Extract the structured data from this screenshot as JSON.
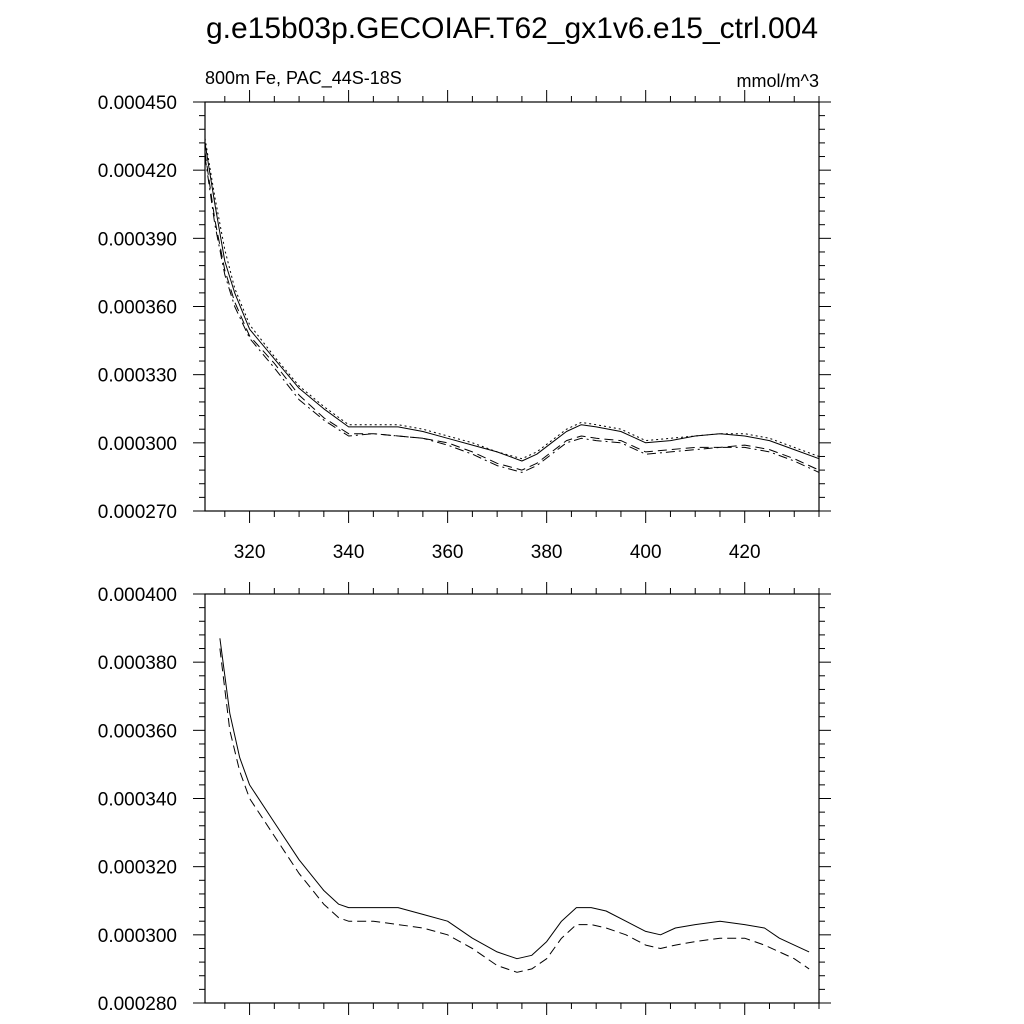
{
  "figure": {
    "title": "g.e15b03p.GECOIAF.T62_gx1v6.e15_ctrl.004"
  },
  "chart_data": [
    {
      "type": "line",
      "subtitle_left": "800m Fe, PAC_44S-18S",
      "subtitle_right": "mmol/m^3",
      "xlabel": "",
      "ylabel": "",
      "xlim": [
        311,
        435
      ],
      "ylim": [
        0.00027,
        0.00045
      ],
      "x_ticks": [
        320,
        340,
        360,
        380,
        400,
        420
      ],
      "x_tick_labels": [
        "320",
        "340",
        "360",
        "380",
        "400",
        "420"
      ],
      "y_ticks": [
        0.00027,
        0.0003,
        0.00033,
        0.00036,
        0.00039,
        0.00042,
        0.00045
      ],
      "y_tick_labels": [
        "0.000270",
        "0.000300",
        "0.000330",
        "0.000360",
        "0.000390",
        "0.000420",
        "0.000450"
      ],
      "grid": false,
      "legend": "none",
      "series": [
        {
          "style": "solid",
          "x": [
            311,
            313,
            315,
            317,
            320,
            325,
            330,
            335,
            340,
            345,
            350,
            355,
            360,
            365,
            370,
            375,
            378,
            381,
            384,
            387,
            390,
            395,
            400,
            405,
            410,
            415,
            420,
            425,
            430,
            435
          ],
          "y": [
            0.000432,
            0.000405,
            0.00038,
            0.000366,
            0.00035,
            0.000337,
            0.000324,
            0.000315,
            0.000307,
            0.000307,
            0.000307,
            0.000305,
            0.000302,
            0.000299,
            0.000296,
            0.000292,
            0.000295,
            0.0003,
            0.000305,
            0.000308,
            0.000307,
            0.000305,
            0.0003,
            0.000301,
            0.000303,
            0.000304,
            0.000303,
            0.000301,
            0.000297,
            0.000293
          ]
        },
        {
          "style": "dashed",
          "x": [
            311,
            313,
            315,
            317,
            320,
            325,
            330,
            335,
            340,
            345,
            350,
            355,
            360,
            365,
            370,
            375,
            378,
            381,
            384,
            387,
            390,
            395,
            400,
            405,
            410,
            415,
            420,
            425,
            430,
            435
          ],
          "y": [
            0.000428,
            0.000398,
            0.000376,
            0.000362,
            0.000347,
            0.000335,
            0.000321,
            0.000311,
            0.000304,
            0.000304,
            0.000303,
            0.000302,
            0.0003,
            0.000296,
            0.000291,
            0.000288,
            0.000291,
            0.000296,
            0.000301,
            0.000303,
            0.000302,
            0.000301,
            0.000296,
            0.000297,
            0.000298,
            0.000298,
            0.000299,
            0.000297,
            0.000293,
            0.000288
          ]
        },
        {
          "style": "dotted",
          "x": [
            311,
            313,
            315,
            317,
            320,
            325,
            330,
            335,
            340,
            345,
            350,
            355,
            360,
            365,
            370,
            375,
            378,
            381,
            384,
            387,
            390,
            395,
            400,
            405,
            410,
            415,
            420,
            425,
            430,
            435
          ],
          "y": [
            0.000434,
            0.000408,
            0.000385,
            0.000368,
            0.000352,
            0.000338,
            0.000325,
            0.000316,
            0.000308,
            0.000308,
            0.000308,
            0.000306,
            0.000303,
            0.0003,
            0.000296,
            0.000293,
            0.000296,
            0.000301,
            0.000306,
            0.000309,
            0.000308,
            0.000306,
            0.000301,
            0.000302,
            0.000303,
            0.000304,
            0.000304,
            0.000302,
            0.000298,
            0.000294
          ]
        },
        {
          "style": "dash-dot",
          "x": [
            311,
            313,
            315,
            317,
            320,
            325,
            330,
            335,
            340,
            345,
            350,
            355,
            360,
            365,
            370,
            375,
            378,
            381,
            384,
            387,
            390,
            395,
            400,
            405,
            410,
            415,
            420,
            425,
            430,
            435
          ],
          "y": [
            0.000426,
            0.000396,
            0.000374,
            0.00036,
            0.000346,
            0.000333,
            0.000319,
            0.00031,
            0.000303,
            0.000304,
            0.000303,
            0.000302,
            0.000299,
            0.000295,
            0.00029,
            0.000287,
            0.00029,
            0.000295,
            0.0003,
            0.000302,
            0.000301,
            0.0003,
            0.000295,
            0.000296,
            0.000297,
            0.000298,
            0.000298,
            0.000296,
            0.000292,
            0.000287
          ]
        }
      ]
    },
    {
      "type": "line",
      "xlabel": "",
      "ylabel": "",
      "xlim": [
        311,
        435
      ],
      "ylim": [
        0.00028,
        0.0004
      ],
      "x_ticks": [
        320,
        340,
        360,
        380,
        400,
        420
      ],
      "y_ticks": [
        0.00028,
        0.0003,
        0.00032,
        0.00034,
        0.00036,
        0.00038,
        0.0004
      ],
      "y_tick_labels": [
        "0.000280",
        "0.000300",
        "0.000320",
        "0.000340",
        "0.000360",
        "0.000380",
        "0.000400"
      ],
      "grid": false,
      "legend": "none",
      "series": [
        {
          "style": "solid",
          "x": [
            314,
            316,
            318,
            320,
            325,
            330,
            335,
            338,
            340,
            342,
            345,
            350,
            355,
            360,
            365,
            370,
            374,
            377,
            380,
            383,
            386,
            389,
            392,
            396,
            400,
            403,
            406,
            410,
            415,
            420,
            424,
            427,
            430,
            433
          ],
          "y": [
            0.000387,
            0.000365,
            0.000352,
            0.000344,
            0.000333,
            0.000322,
            0.000313,
            0.000309,
            0.000308,
            0.000308,
            0.000308,
            0.000308,
            0.000306,
            0.000304,
            0.000299,
            0.000295,
            0.000293,
            0.000294,
            0.000298,
            0.000304,
            0.000308,
            0.000308,
            0.000307,
            0.000304,
            0.000301,
            0.0003,
            0.000302,
            0.000303,
            0.000304,
            0.000303,
            0.000302,
            0.000299,
            0.000297,
            0.000295
          ]
        },
        {
          "style": "dashed",
          "x": [
            314,
            316,
            318,
            320,
            325,
            330,
            335,
            338,
            340,
            342,
            345,
            350,
            355,
            360,
            365,
            370,
            374,
            377,
            380,
            383,
            386,
            389,
            392,
            396,
            400,
            403,
            406,
            410,
            415,
            420,
            424,
            427,
            430,
            433
          ],
          "y": [
            0.000384,
            0.00036,
            0.000348,
            0.00034,
            0.000329,
            0.000318,
            0.000309,
            0.000305,
            0.000304,
            0.000304,
            0.000304,
            0.000303,
            0.000302,
            0.0003,
            0.000296,
            0.000291,
            0.000289,
            0.00029,
            0.000293,
            0.000299,
            0.000303,
            0.000303,
            0.000302,
            0.0003,
            0.000297,
            0.000296,
            0.000297,
            0.000298,
            0.000299,
            0.000299,
            0.000297,
            0.000295,
            0.000293,
            0.00029
          ]
        }
      ]
    }
  ]
}
